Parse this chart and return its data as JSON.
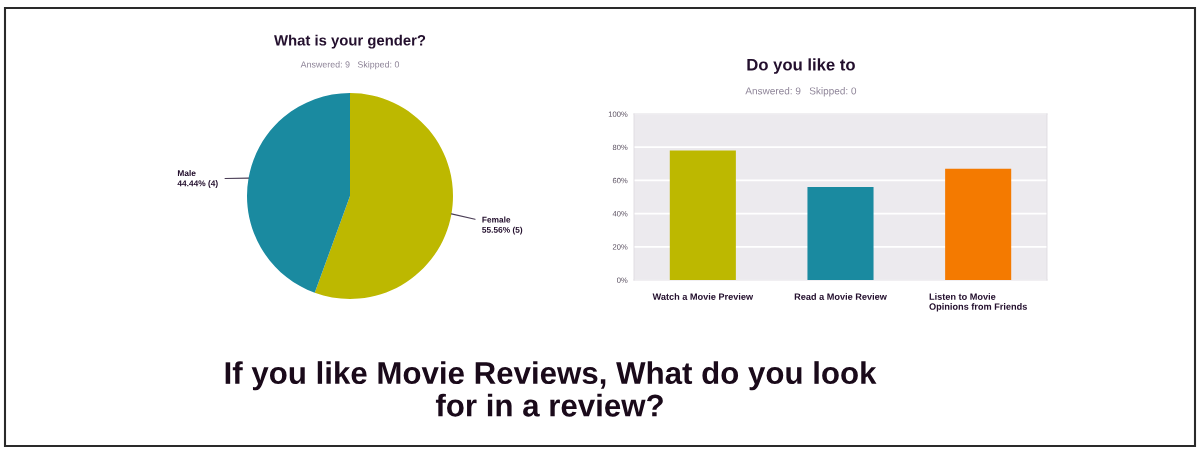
{
  "chart_data": [
    {
      "type": "pie",
      "title": "What is your gender?",
      "subtitle": "Answered: 9   Skipped: 0",
      "categories": [
        "Female",
        "Male"
      ],
      "values": [
        55.56,
        44.44
      ],
      "colors": [
        "#bdb800",
        "#1a8aa0"
      ],
      "value_labels": [
        "55.56% (5)",
        "44.44% (4)"
      ],
      "annotations": [
        "If you like Movie Reviews, What do you look\nfor in a review?"
      ]
    },
    {
      "type": "bar",
      "title": "Do you like to",
      "subtitle": "Answered: 9   Skipped: 0",
      "categories": [
        "Watch a Movie Preview",
        "Read a Movie Review",
        "Listen to Movie\nOpinions from Friends"
      ],
      "values": [
        78,
        56,
        67
      ],
      "colors": [
        "#bdb800",
        "#1a8aa0",
        "#f47a00"
      ],
      "ylim": [
        0,
        100
      ],
      "yticks": [
        {
          "value": 0,
          "label": "0%"
        },
        {
          "value": 20,
          "label": "20%"
        },
        {
          "value": 40,
          "label": "40%"
        },
        {
          "value": 60,
          "label": "60%"
        },
        {
          "value": 80,
          "label": "80%"
        },
        {
          "value": 100,
          "label": "100%"
        }
      ],
      "grid": "y"
    }
  ]
}
